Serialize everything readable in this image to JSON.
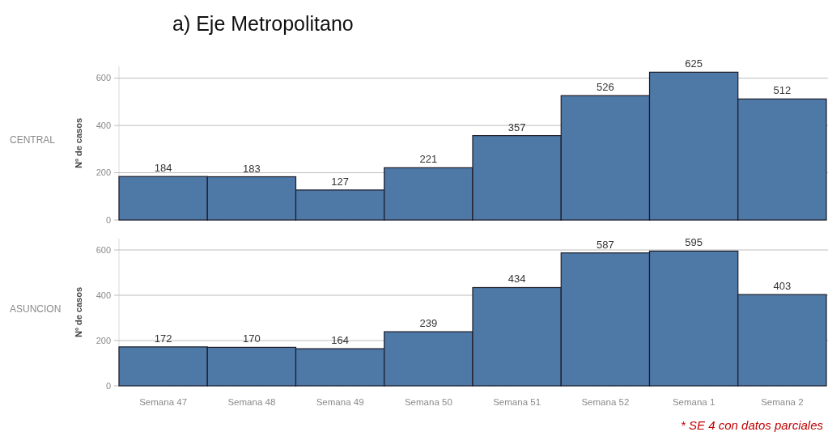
{
  "chart_data": [
    {
      "type": "bar",
      "title": "a) Eje Metropolitano",
      "ylabel": "Nº de casos",
      "annotations": [
        "CENTRAL"
      ],
      "categories": [
        null,
        null,
        null,
        null,
        null,
        null,
        null,
        null
      ],
      "values": [
        184,
        183,
        127,
        221,
        357,
        526,
        625,
        512
      ],
      "color": "#4e78a6",
      "ylim": [
        0,
        650
      ],
      "yticks": [
        0,
        200,
        400,
        600
      ],
      "grid": "y",
      "data_labels": true,
      "tick_labels": "y"
    },
    {
      "type": "bar",
      "ylabel": "Nº de casos",
      "annotations": [
        "ASUNCION",
        "* SE 4 con datos parciales"
      ],
      "categories": [
        "Semana 47",
        "Semana 48",
        "Semana 49",
        "Semana 50",
        "Semana 51",
        "Semana 52",
        "Semana 1",
        "Semana 2"
      ],
      "values": [
        172,
        170,
        164,
        239,
        434,
        587,
        595,
        403
      ],
      "color": "#4e78a6",
      "ylim": [
        0,
        650
      ],
      "yticks": [
        0,
        200,
        400,
        600
      ],
      "grid": "y",
      "data_labels": true
    }
  ]
}
